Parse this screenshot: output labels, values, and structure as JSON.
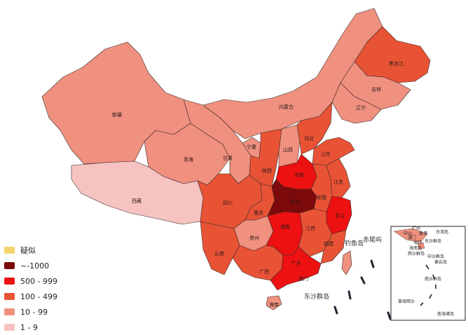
{
  "legend": [
    {
      "label": "疑似",
      "color": "#f5d56e"
    },
    {
      "label": "~-1000",
      "color": "#7d0a0a"
    },
    {
      "label": "500 - 999",
      "color": "#ee1111"
    },
    {
      "label": "100 - 499",
      "color": "#e95335"
    },
    {
      "label": "10 - 99",
      "color": "#f0907f"
    },
    {
      "label": "1 - 9",
      "color": "#f6c3c1"
    }
  ],
  "provinces": {
    "xinjiang": {
      "name": "新疆",
      "level": "10 - 99"
    },
    "xizang": {
      "name": "西藏",
      "level": "1 - 9"
    },
    "qinghai": {
      "name": "青海",
      "level": "10 - 99"
    },
    "gansu": {
      "name": "甘肃",
      "level": "10 - 99"
    },
    "neimenggu": {
      "name": "内蒙古",
      "level": "10 - 99"
    },
    "heilongjiang": {
      "name": "黑龙江",
      "level": "100 - 499"
    },
    "jilin": {
      "name": "吉林",
      "level": "10 - 99"
    },
    "liaoning": {
      "name": "辽宁",
      "level": "10 - 99"
    },
    "ningxia": {
      "name": "宁夏",
      "level": "10 - 99"
    },
    "shaanxi": {
      "name": "陕西",
      "level": "100 - 499"
    },
    "shanxi": {
      "name": "山西",
      "level": "10 - 99"
    },
    "hebei": {
      "name": "河北",
      "level": "100 - 499"
    },
    "shandong": {
      "name": "山东",
      "level": "100 - 499"
    },
    "henan": {
      "name": "河南",
      "level": "500 - 999"
    },
    "sichuan": {
      "name": "四川",
      "level": "100 - 499"
    },
    "chongqing": {
      "name": "重庆",
      "level": "100 - 499"
    },
    "hubei": {
      "name": "湖北",
      "level": "~-1000"
    },
    "anhui": {
      "name": "安徽",
      "level": "100 - 499"
    },
    "jiangsu": {
      "name": "江苏",
      "level": "100 - 499"
    },
    "zhejiang": {
      "name": "浙江",
      "level": "500 - 999"
    },
    "guizhou": {
      "name": "贵州",
      "level": "10 - 99"
    },
    "hunan": {
      "name": "湖南",
      "level": "500 - 999"
    },
    "jiangxi": {
      "name": "江西",
      "level": "100 - 499"
    },
    "fujian": {
      "name": "福建",
      "level": "100 - 499"
    },
    "yunnan": {
      "name": "云南",
      "level": "100 - 499"
    },
    "guangxi": {
      "name": "广西",
      "level": "100 - 499"
    },
    "guangdong": {
      "name": "广东",
      "level": "500 - 999"
    },
    "hainan": {
      "name": "海南",
      "level": "10 - 99"
    },
    "taiwan": {
      "name": "台湾",
      "level": "10 - 99"
    }
  },
  "map_text": {
    "diaoyu": "钓鱼岛",
    "chiwei": "赤尾屿",
    "dongsha": "东沙群岛",
    "aomen": "澳门"
  },
  "inset": {
    "title": "南海诸岛",
    "labels": [
      "广州",
      "中山",
      "澳门",
      "香港",
      "台湾岛",
      "海口",
      "东沙群岛",
      "海南岛",
      "西沙群岛",
      "中沙群岛",
      "黄岩岛",
      "南沙群岛",
      "曾母暗沙"
    ]
  }
}
